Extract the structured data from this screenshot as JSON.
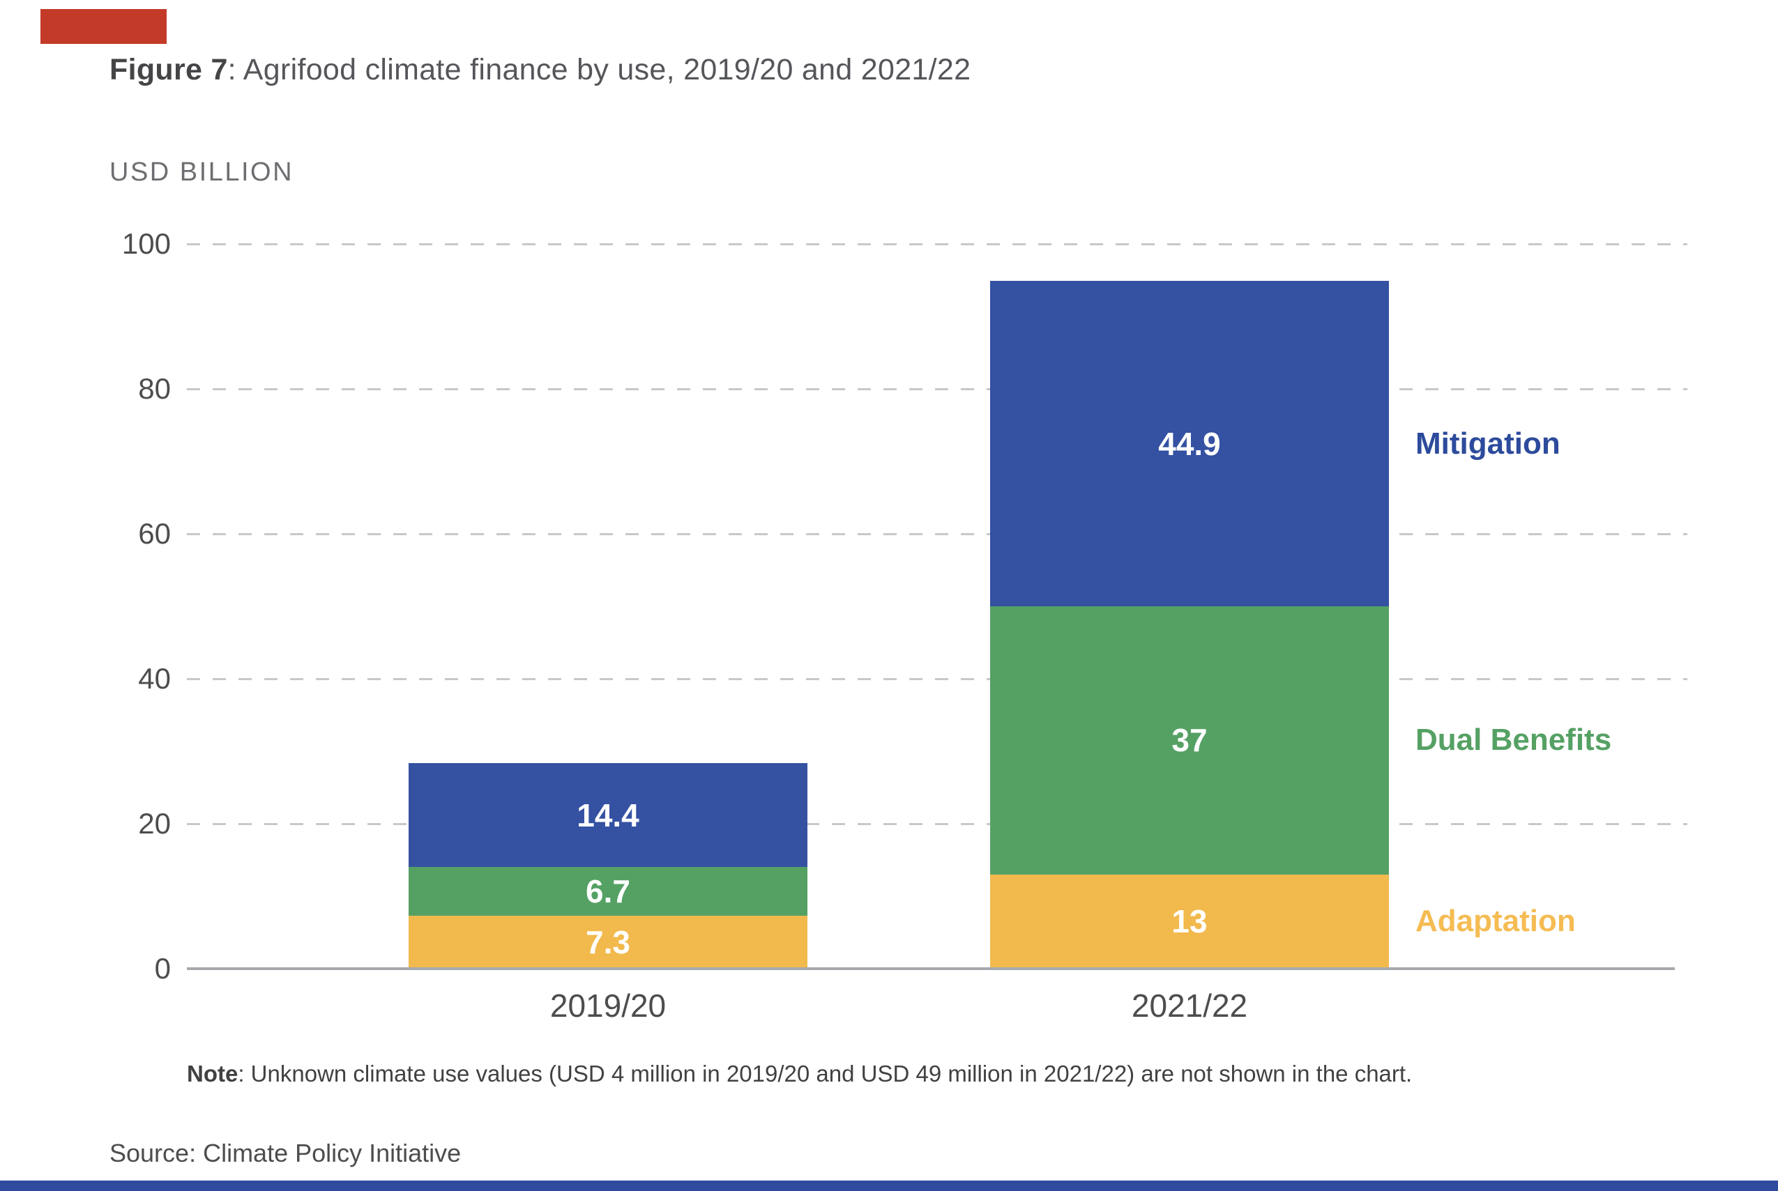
{
  "page": {
    "title": {
      "prefix": "Figure 7",
      "rest": ": Agrifood climate finance by use, 2019/20 and 2021/22"
    },
    "note": {
      "prefix": "Note",
      "rest": ": Unknown climate use values (USD 4 million in 2019/20 and USD 49 million in 2021/22) are not shown in the chart."
    },
    "source": "Source: Climate Policy Initiative",
    "accents": {
      "corner_tab_color": "#C43A28",
      "footer_bar_color": "#2F4B9E"
    }
  },
  "chart_data": {
    "type": "bar",
    "stacked": true,
    "title": "Figure 7: Agrifood climate finance by use, 2019/20 and 2021/22",
    "unit_label": "USD BILLION",
    "categories": [
      "2019/20",
      "2021/22"
    ],
    "series": [
      {
        "name": "Adaptation",
        "color": "#F2B94D",
        "label_color": "#F5BC53",
        "values": [
          7.3,
          13
        ],
        "display": [
          "7.3",
          "13"
        ]
      },
      {
        "name": "Dual Benefits",
        "color": "#55A164",
        "label_color": "#55A164",
        "values": [
          6.7,
          37
        ],
        "display": [
          "6.7",
          "37"
        ]
      },
      {
        "name": "Mitigation",
        "color": "#3451A2",
        "label_color": "#2D4B9C",
        "values": [
          14.4,
          44.9
        ],
        "display": [
          "14.4",
          "44.9"
        ]
      }
    ],
    "totals": [
      28.4,
      94.9
    ],
    "y_axis": {
      "label": "USD BILLION",
      "min": 0,
      "max": 100,
      "tick_interval": 20,
      "tick_labels": [
        "0",
        "20",
        "40",
        "60",
        "80",
        "100"
      ],
      "gridlines": "dashed"
    },
    "legend_position": "right",
    "legend_entries": [
      "Mitigation",
      "Dual Benefits",
      "Adaptation"
    ],
    "note": "Note: Unknown climate use values (USD 4 million in 2019/20 and USD 49 million in 2021/22) are not shown in the chart.",
    "source": "Source: Climate Policy Initiative"
  }
}
